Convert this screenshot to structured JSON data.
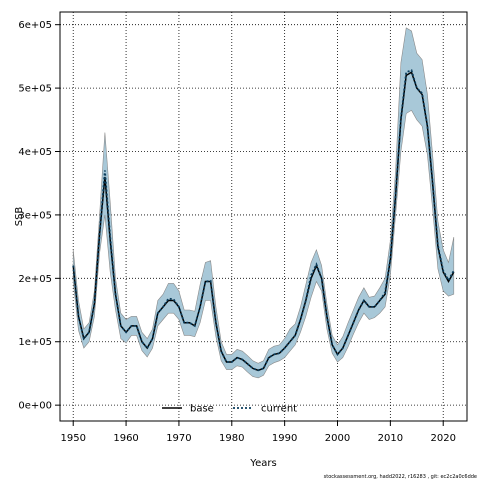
{
  "chart_data": {
    "type": "line",
    "xlabel": "Years",
    "ylabel": "SSB",
    "xlim": [
      1947.5,
      2024.5
    ],
    "ylim": [
      -25000,
      620000
    ],
    "x_ticks": [
      1950,
      1960,
      1970,
      1980,
      1990,
      2000,
      2010,
      2020
    ],
    "y_ticks": [
      0,
      100000,
      200000,
      300000,
      400000,
      500000,
      600000
    ],
    "y_tick_labels": [
      "0e+00",
      "1e+05",
      "2e+05",
      "3e+05",
      "4e+05",
      "5e+05",
      "6e+05"
    ],
    "grid": true,
    "legend_position": "bottom-center",
    "credit": "stockassessment.org, hadd2022, r16283 , git: ec2c2a0c6dde",
    "x": [
      1950,
      1951,
      1952,
      1953,
      1954,
      1955,
      1956,
      1957,
      1958,
      1959,
      1960,
      1961,
      1962,
      1963,
      1964,
      1965,
      1966,
      1967,
      1968,
      1969,
      1970,
      1971,
      1972,
      1973,
      1974,
      1975,
      1976,
      1977,
      1978,
      1979,
      1980,
      1981,
      1982,
      1983,
      1984,
      1985,
      1986,
      1987,
      1988,
      1989,
      1990,
      1991,
      1992,
      1993,
      1994,
      1995,
      1996,
      1997,
      1998,
      1999,
      2000,
      2001,
      2002,
      2003,
      2004,
      2005,
      2006,
      2007,
      2008,
      2009,
      2010,
      2011,
      2012,
      2013,
      2014,
      2015,
      2016,
      2017,
      2018,
      2019,
      2020,
      2021,
      2022
    ],
    "series": [
      {
        "name": "base",
        "color": "#000000",
        "style": "solid",
        "values": [
          220000,
          140000,
          105000,
          115000,
          160000,
          270000,
          360000,
          260000,
          175000,
          125000,
          115000,
          125000,
          125000,
          100000,
          90000,
          105000,
          145000,
          155000,
          165000,
          165000,
          155000,
          130000,
          130000,
          125000,
          155000,
          195000,
          195000,
          130000,
          85000,
          68000,
          68000,
          75000,
          72000,
          65000,
          58000,
          55000,
          58000,
          75000,
          80000,
          82000,
          90000,
          100000,
          110000,
          135000,
          165000,
          200000,
          220000,
          200000,
          140000,
          95000,
          80000,
          90000,
          110000,
          130000,
          150000,
          165000,
          155000,
          155000,
          165000,
          175000,
          230000,
          330000,
          450000,
          520000,
          525000,
          500000,
          490000,
          440000,
          350000,
          250000,
          210000,
          195000,
          210000
        ]
      },
      {
        "name": "current",
        "color": "#0b3d5c",
        "style": "dotted",
        "values": [
          220000,
          140000,
          105000,
          115000,
          160000,
          270000,
          370000,
          265000,
          175000,
          125000,
          115000,
          125000,
          125000,
          100000,
          90000,
          105000,
          145000,
          155000,
          168000,
          167000,
          155000,
          130000,
          130000,
          125000,
          155000,
          195000,
          196000,
          130000,
          85000,
          68000,
          68000,
          75000,
          72000,
          65000,
          58000,
          55000,
          58000,
          75000,
          80000,
          82000,
          90000,
          100000,
          110000,
          135000,
          165000,
          205000,
          222000,
          200000,
          140000,
          95000,
          80000,
          90000,
          110000,
          130000,
          150000,
          165000,
          155000,
          155000,
          165000,
          178000,
          232000,
          332000,
          452000,
          525000,
          528000,
          500000,
          492000,
          440000,
          352000,
          252000,
          212000,
          197000,
          212000
        ]
      }
    ],
    "band": {
      "color": "#a8c8d8",
      "edge_color": "#8a8a8a",
      "upper": [
        245000,
        165000,
        120000,
        130000,
        180000,
        300000,
        430000,
        320000,
        200000,
        145000,
        135000,
        140000,
        140000,
        115000,
        105000,
        120000,
        165000,
        175000,
        192000,
        192000,
        180000,
        150000,
        150000,
        148000,
        190000,
        225000,
        228000,
        155000,
        100000,
        80000,
        80000,
        88000,
        85000,
        78000,
        70000,
        66000,
        70000,
        88000,
        93000,
        95000,
        105000,
        120000,
        128000,
        155000,
        190000,
        225000,
        245000,
        220000,
        160000,
        110000,
        95000,
        108000,
        130000,
        150000,
        170000,
        185000,
        170000,
        172000,
        185000,
        200000,
        260000,
        370000,
        540000,
        595000,
        590000,
        555000,
        545000,
        490000,
        395000,
        290000,
        245000,
        225000,
        265000
      ],
      "lower": [
        195000,
        118000,
        90000,
        100000,
        140000,
        240000,
        300000,
        210000,
        150000,
        105000,
        98000,
        110000,
        110000,
        86000,
        76000,
        90000,
        125000,
        135000,
        145000,
        145000,
        135000,
        110000,
        110000,
        108000,
        130000,
        165000,
        165000,
        108000,
        70000,
        56000,
        56000,
        62000,
        60000,
        52000,
        45000,
        43000,
        47000,
        62000,
        67000,
        70000,
        75000,
        85000,
        95000,
        115000,
        140000,
        170000,
        195000,
        180000,
        120000,
        82000,
        68000,
        75000,
        92000,
        112000,
        130000,
        145000,
        135000,
        138000,
        145000,
        155000,
        205000,
        300000,
        400000,
        460000,
        465000,
        450000,
        440000,
        395000,
        310000,
        215000,
        180000,
        172000,
        175000
      ]
    }
  }
}
